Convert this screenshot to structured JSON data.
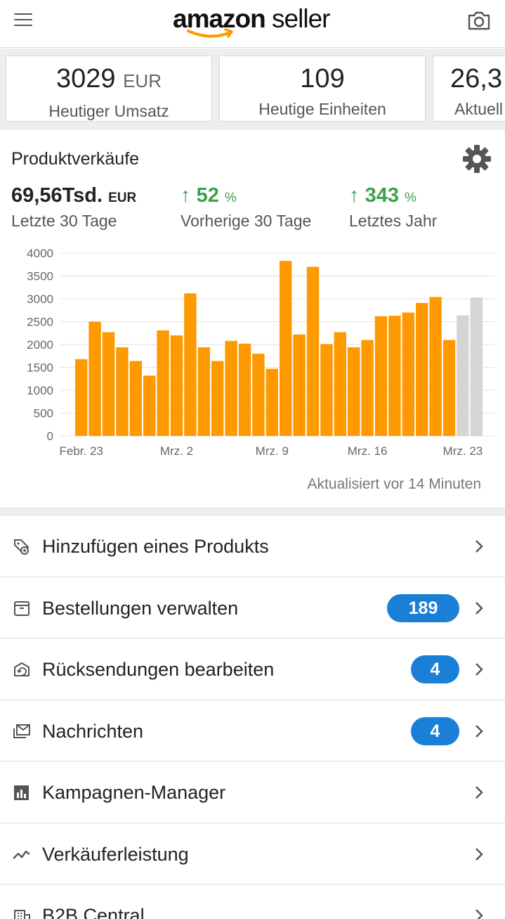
{
  "header": {
    "logo_word_1": "amazon",
    "logo_word_2": "seller",
    "menu_icon": "hamburger-menu-icon",
    "camera_icon": "camera-icon"
  },
  "kpis": [
    {
      "value": "3029",
      "unit": "EUR",
      "label": "Heutiger Umsatz"
    },
    {
      "value": "109",
      "unit": "",
      "label": "Heutige Einheiten"
    },
    {
      "value": "26,3",
      "unit": "",
      "label": "Aktuell"
    }
  ],
  "sales_card": {
    "title": "Produktverkäufe",
    "total_value": "69,56Tsd.",
    "total_unit": "EUR",
    "total_label": "Letzte 30 Tage",
    "prev_change": "52",
    "prev_change_unit": "%",
    "prev_label": "Vorherige 30 Tage",
    "year_change": "343",
    "year_change_unit": "%",
    "year_label": "Letztes Jahr",
    "updated": "Aktualisiert vor 14 Minuten",
    "colors": {
      "bar": "#FF9900",
      "bar_pending": "#D5D5D5",
      "green": "#3AA348"
    }
  },
  "chart_data": {
    "type": "bar",
    "y_ticks": [
      "0",
      "500",
      "1000",
      "1500",
      "2000",
      "2500",
      "3000",
      "3500",
      "4000"
    ],
    "ylim": [
      0,
      4000
    ],
    "x_tick_labels": [
      "Febr. 23",
      "Mrz. 2",
      "Mrz. 9",
      "Mrz. 16",
      "Mrz. 23"
    ],
    "values": [
      1680,
      2500,
      2270,
      1940,
      1640,
      1320,
      2310,
      2200,
      3120,
      1940,
      1640,
      2080,
      2020,
      1800,
      1470,
      3830,
      2220,
      3700,
      2010,
      2270,
      1940,
      2100,
      2620,
      2630,
      2700,
      2910,
      3040,
      2100,
      2640,
      3030
    ],
    "pending_from_index": 28,
    "grid": true
  },
  "menu": [
    {
      "label": "Hinzufügen eines Produkts",
      "icon": "add-product-tag-icon",
      "badge": ""
    },
    {
      "label": "Bestellungen verwalten",
      "icon": "orders-box-icon",
      "badge": "189"
    },
    {
      "label": "Rücksendungen bearbeiten",
      "icon": "returns-box-icon",
      "badge": "4"
    },
    {
      "label": "Nachrichten",
      "icon": "messages-envelope-icon",
      "badge": "4"
    },
    {
      "label": "Kampagnen-Manager",
      "icon": "campaign-chart-icon",
      "badge": ""
    },
    {
      "label": "Verkäuferleistung",
      "icon": "performance-line-icon",
      "badge": ""
    },
    {
      "label": "B2B Central",
      "icon": "b2b-building-icon",
      "badge": ""
    }
  ]
}
